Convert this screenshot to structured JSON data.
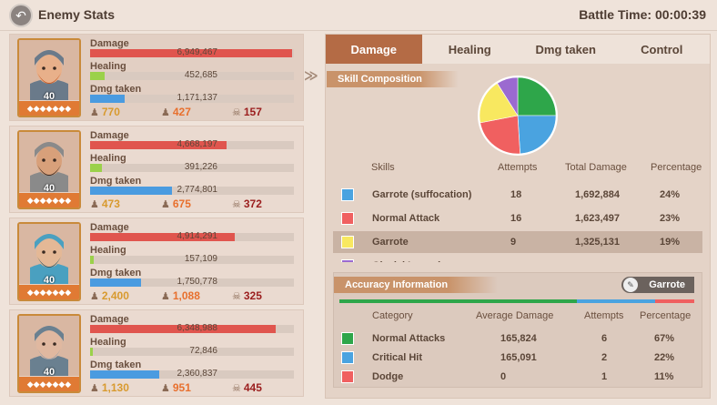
{
  "header": {
    "title": "Enemy Stats",
    "battle_time": "Battle Time: 00:00:39"
  },
  "labels": {
    "damage": "Damage",
    "healing": "Healing",
    "dmg_taken": "Dmg taken"
  },
  "heroes": [
    {
      "level": "40",
      "damage": "6,949,467",
      "damage_frac": 0.99,
      "healing": "452,685",
      "healing_frac": 0.07,
      "taken": "1,171,137",
      "taken_frac": 0.17,
      "c1": "770",
      "c2": "427",
      "c3": "157"
    },
    {
      "level": "40",
      "damage": "4,668,197",
      "damage_frac": 0.67,
      "healing": "391,226",
      "healing_frac": 0.06,
      "taken": "2,774,801",
      "taken_frac": 0.4,
      "c1": "473",
      "c2": "675",
      "c3": "372"
    },
    {
      "level": "40",
      "damage": "4,914,291",
      "damage_frac": 0.71,
      "healing": "157,109",
      "healing_frac": 0.02,
      "taken": "1,750,778",
      "taken_frac": 0.25,
      "c1": "2,400",
      "c2": "1,088",
      "c3": "325"
    },
    {
      "level": "40",
      "damage": "6,348,988",
      "damage_frac": 0.91,
      "healing": "72,846",
      "healing_frac": 0.01,
      "taken": "2,360,837",
      "taken_frac": 0.34,
      "c1": "1,130",
      "c2": "951",
      "c3": "445"
    }
  ],
  "tabs": [
    "Damage",
    "Healing",
    "Dmg taken",
    "Control"
  ],
  "skill_composition": "Skill Composition",
  "skills_table": {
    "headers": [
      "Skills",
      "Attempts",
      "Total Damage",
      "Percentage"
    ],
    "rows": [
      {
        "name": "Garrote (suffocation)",
        "attempts": "18",
        "total": "1,692,884",
        "pct": "24%",
        "color": "#4aa3e0"
      },
      {
        "name": "Normal Attack",
        "attempts": "16",
        "total": "1,623,497",
        "pct": "23%",
        "color": "#f06060"
      },
      {
        "name": "Garrote",
        "attempts": "9",
        "total": "1,325,131",
        "pct": "19%",
        "color": "#f8e860"
      },
      {
        "name": "Glacial Incursion",
        "attempts": "",
        "total": "",
        "pct": "",
        "color": "#9b6ad0"
      }
    ]
  },
  "pie": [
    {
      "color": "#2ea64a",
      "value": 25
    },
    {
      "color": "#4aa3e0",
      "value": 24
    },
    {
      "color": "#f06060",
      "value": 23
    },
    {
      "color": "#f8e860",
      "value": 19
    },
    {
      "color": "#9b6ad0",
      "value": 9
    }
  ],
  "accuracy": {
    "title": "Accuracy Information",
    "skill": "Garrote",
    "headers": [
      "Category",
      "Average Damage",
      "Attempts",
      "Percentage"
    ],
    "rows": [
      {
        "name": "Normal Attacks",
        "avg": "165,824",
        "attempts": "6",
        "pct": "67%",
        "color": "#2ea64a",
        "frac": 0.67
      },
      {
        "name": "Critical Hit",
        "avg": "165,091",
        "attempts": "2",
        "pct": "22%",
        "color": "#4aa3e0",
        "frac": 0.22
      },
      {
        "name": "Dodge",
        "avg": "0",
        "attempts": "1",
        "pct": "11%",
        "color": "#f06060",
        "frac": 0.11
      }
    ]
  }
}
